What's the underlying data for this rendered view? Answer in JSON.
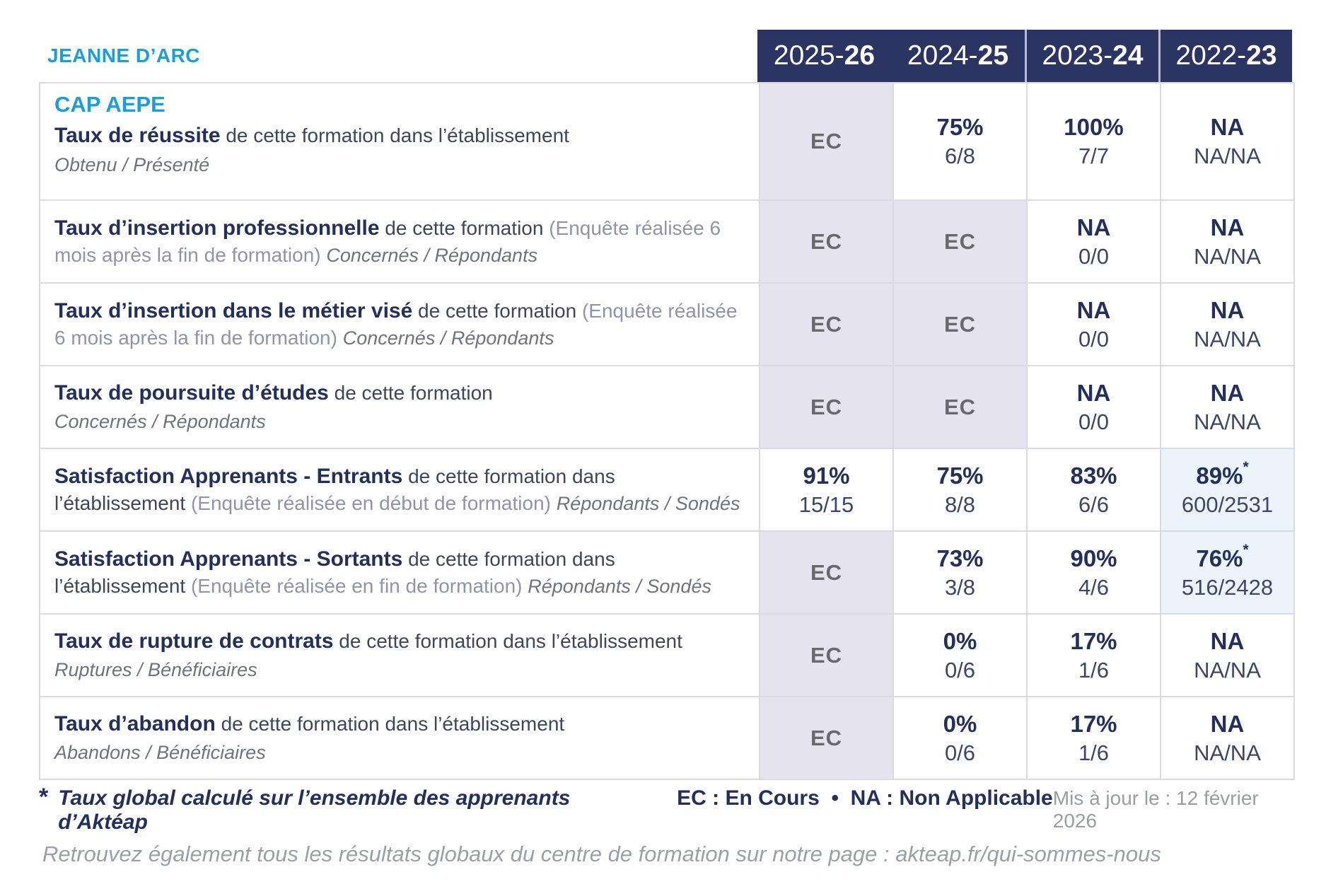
{
  "brand": {
    "school": "JEANNE D’ARC",
    "program": "CAP AEPE"
  },
  "years": [
    {
      "prefix": "2025-",
      "suffix": "26"
    },
    {
      "prefix": "2024-",
      "suffix": "25"
    },
    {
      "prefix": "2023-",
      "suffix": "24"
    },
    {
      "prefix": "2022-",
      "suffix": "23"
    }
  ],
  "colors": {
    "accent_cyan": "#189fdb",
    "navy": "#232f5c",
    "header_bg": "#2b3462",
    "ec_cell_bg": "#e4e3ee",
    "highlight_cell_bg": "#ecf4fb"
  },
  "rows": [
    {
      "title": "Taux de réussite",
      "desc": " de cette formation dans l’établissement",
      "sub": " Obtenu / Présenté",
      "sub_block": true,
      "cells": [
        {
          "type": "ec",
          "main": "EC"
        },
        {
          "type": "value",
          "main": "75%",
          "sub": "6/8"
        },
        {
          "type": "value",
          "main": "100%",
          "sub": "7/7"
        },
        {
          "type": "value",
          "main": "NA",
          "sub": "NA/NA"
        }
      ]
    },
    {
      "title": "Taux d’insertion professionnelle",
      "desc": " de cette formation ",
      "light": "(Enquête réalisée 6 mois après la fin de formation) ",
      "sub": " Concernés / Répondants",
      "sub_block": false,
      "cells": [
        {
          "type": "ec",
          "main": "EC"
        },
        {
          "type": "ec",
          "main": "EC"
        },
        {
          "type": "value",
          "main": "NA",
          "sub": "0/0"
        },
        {
          "type": "value",
          "main": "NA",
          "sub": "NA/NA"
        }
      ]
    },
    {
      "title": "Taux d’insertion dans le métier visé",
      "desc": " de cette formation ",
      "light": "(Enquête réalisée 6 mois après la fin de formation) ",
      "sub": " Concernés / Répondants",
      "sub_block": false,
      "cells": [
        {
          "type": "ec",
          "main": "EC"
        },
        {
          "type": "ec",
          "main": "EC"
        },
        {
          "type": "value",
          "main": "NA",
          "sub": "0/0"
        },
        {
          "type": "value",
          "main": "NA",
          "sub": "NA/NA"
        }
      ]
    },
    {
      "title": "Taux de poursuite d’études",
      "desc": " de cette formation",
      "sub": " Concernés / Répondants",
      "sub_block": true,
      "cells": [
        {
          "type": "ec",
          "main": "EC"
        },
        {
          "type": "ec",
          "main": "EC"
        },
        {
          "type": "value",
          "main": "NA",
          "sub": "0/0"
        },
        {
          "type": "value",
          "main": "NA",
          "sub": "NA/NA"
        }
      ]
    },
    {
      "title": "Satisfaction Apprenants - Entrants",
      "desc": " de cette formation dans l’établissement ",
      "light": "(Enquête réalisée en début de formation) ",
      "sub": " Répondants / Sondés",
      "sub_block": false,
      "cells": [
        {
          "type": "value",
          "main": "91%",
          "sub": "15/15"
        },
        {
          "type": "value",
          "main": "75%",
          "sub": "8/8"
        },
        {
          "type": "value",
          "main": "83%",
          "sub": "6/6"
        },
        {
          "type": "highlight",
          "main": "89%",
          "sup": "*",
          "sub": "600/2531"
        }
      ]
    },
    {
      "title": "Satisfaction Apprenants - Sortants",
      "desc": " de cette formation dans l’établissement ",
      "light": "(Enquête réalisée en fin de formation) ",
      "sub": " Répondants / Sondés",
      "sub_block": false,
      "cells": [
        {
          "type": "ec",
          "main": "EC"
        },
        {
          "type": "value",
          "main": "73%",
          "sub": "3/8"
        },
        {
          "type": "value",
          "main": "90%",
          "sub": "4/6"
        },
        {
          "type": "highlight",
          "main": "76%",
          "sup": "*",
          "sub": "516/2428"
        }
      ]
    },
    {
      "title": "Taux de rupture de contrats",
      "desc": " de cette formation dans l’établissement",
      "sub": " Ruptures / Bénéficiaires",
      "sub_block": true,
      "cells": [
        {
          "type": "ec",
          "main": "EC"
        },
        {
          "type": "value",
          "main": "0%",
          "sub": "0/6"
        },
        {
          "type": "value",
          "main": "17%",
          "sub": "1/6"
        },
        {
          "type": "value",
          "main": "NA",
          "sub": "NA/NA"
        }
      ]
    },
    {
      "title": "Taux d’abandon",
      "desc": " de cette formation dans l’établissement",
      "sub": " Abandons / Bénéficiaires",
      "sub_block": true,
      "cells": [
        {
          "type": "ec",
          "main": "EC"
        },
        {
          "type": "value",
          "main": "0%",
          "sub": "0/6"
        },
        {
          "type": "value",
          "main": "17%",
          "sub": "1/6"
        },
        {
          "type": "value",
          "main": "NA",
          "sub": "NA/NA"
        }
      ]
    }
  ],
  "footer": {
    "star": "*",
    "star_note": "Taux global calculé sur l’ensemble des apprenants d’Aktéap",
    "legend": "EC : En Cours  •  NA : Non Applicable",
    "updated": "Mis à jour le : 12 février 2026",
    "bottom_note": "Retrouvez également tous les résultats globaux du centre de formation sur notre page : akteap.fr/qui-sommes-nous"
  }
}
